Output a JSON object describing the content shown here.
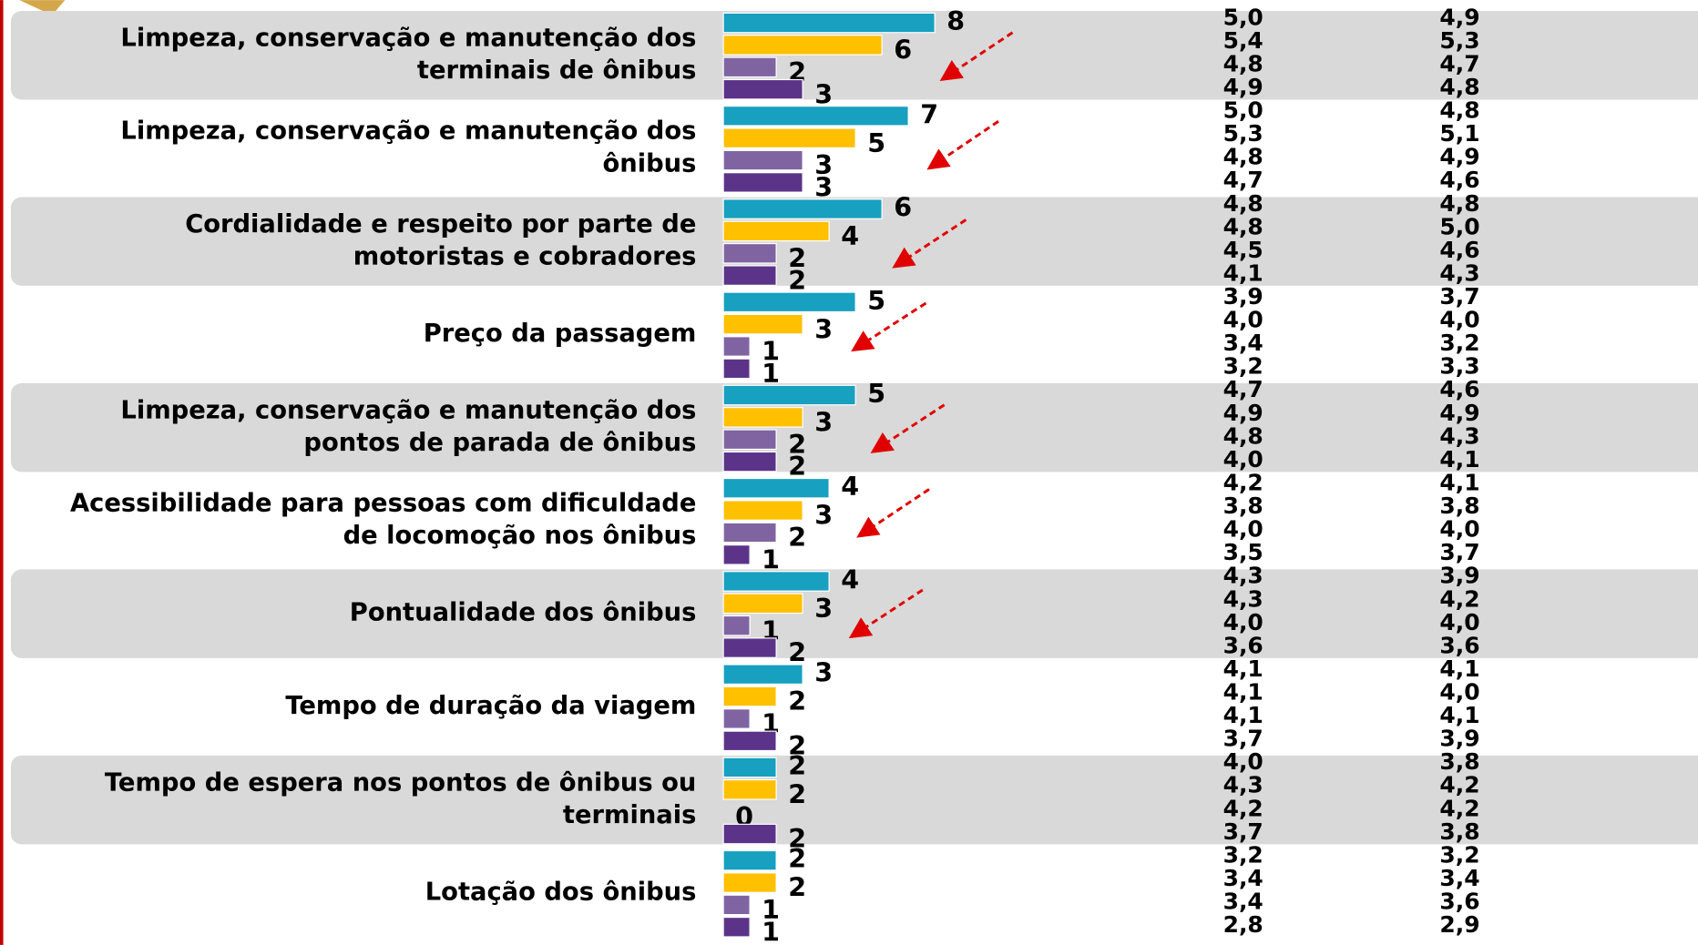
{
  "chart_data": {
    "type": "bar",
    "categories": [
      [
        "Limpeza, conservação e manutenção dos",
        "terminais de ônibus"
      ],
      [
        "Limpeza, conservação e manutenção dos",
        "ônibus"
      ],
      [
        "Cordialidade e respeito por parte de",
        "motoristas e cobradores"
      ],
      [
        "Preço da passagem"
      ],
      [
        "Limpeza, conservação e manutenção dos",
        "pontos de parada de ônibus"
      ],
      [
        "Acessibilidade para pessoas com dificuldade",
        "de locomoção nos ônibus"
      ],
      [
        "Pontualidade dos ônibus"
      ],
      [
        "Tempo de duração da viagem"
      ],
      [
        "Tempo de espera nos pontos de ônibus ou",
        "terminais"
      ],
      [
        "Lotação dos ônibus"
      ]
    ],
    "series": [
      {
        "color": "#17a0c0",
        "values": [
          8,
          7,
          6,
          5,
          5,
          4,
          4,
          3,
          2,
          2
        ]
      },
      {
        "color": "#ffc000",
        "values": [
          6,
          5,
          4,
          3,
          3,
          3,
          3,
          2,
          2,
          2
        ]
      },
      {
        "color": "#8064a2",
        "values": [
          2,
          3,
          2,
          1,
          2,
          2,
          1,
          1,
          0,
          1
        ]
      },
      {
        "color": "#5b3489",
        "values": [
          3,
          3,
          2,
          1,
          2,
          1,
          2,
          2,
          2,
          1
        ]
      }
    ],
    "side_columns": [
      [
        [
          "5,0",
          "5,4",
          "4,8",
          "4,9"
        ],
        [
          "5,0",
          "5,3",
          "4,8",
          "4,7"
        ],
        [
          "4,8",
          "4,8",
          "4,5",
          "4,1"
        ],
        [
          "3,9",
          "4,0",
          "3,4",
          "3,2"
        ],
        [
          "4,7",
          "4,9",
          "4,8",
          "4,0"
        ],
        [
          "4,2",
          "3,8",
          "4,0",
          "3,5"
        ],
        [
          "4,3",
          "4,3",
          "4,0",
          "3,6"
        ],
        [
          "4,1",
          "4,1",
          "4,1",
          "3,7"
        ],
        [
          "4,0",
          "4,3",
          "4,2",
          "3,7"
        ],
        [
          "3,2",
          "3,4",
          "3,4",
          "2,8"
        ]
      ],
      [
        [
          "4,9",
          "5,3",
          "4,7",
          "4,8"
        ],
        [
          "4,8",
          "5,1",
          "4,9",
          "4,6"
        ],
        [
          "4,8",
          "5,0",
          "4,6",
          "4,3"
        ],
        [
          "3,7",
          "4,0",
          "3,2",
          "3,3"
        ],
        [
          "4,6",
          "4,9",
          "4,3",
          "4,1"
        ],
        [
          "4,1",
          "3,8",
          "4,0",
          "3,7"
        ],
        [
          "3,9",
          "4,2",
          "4,0",
          "3,6"
        ],
        [
          "4,1",
          "4,0",
          "4,1",
          "3,9"
        ],
        [
          "3,8",
          "4,2",
          "4,2",
          "3,8"
        ],
        [
          "3,2",
          "3,4",
          "3,6",
          "2,9"
        ]
      ]
    ]
  }
}
